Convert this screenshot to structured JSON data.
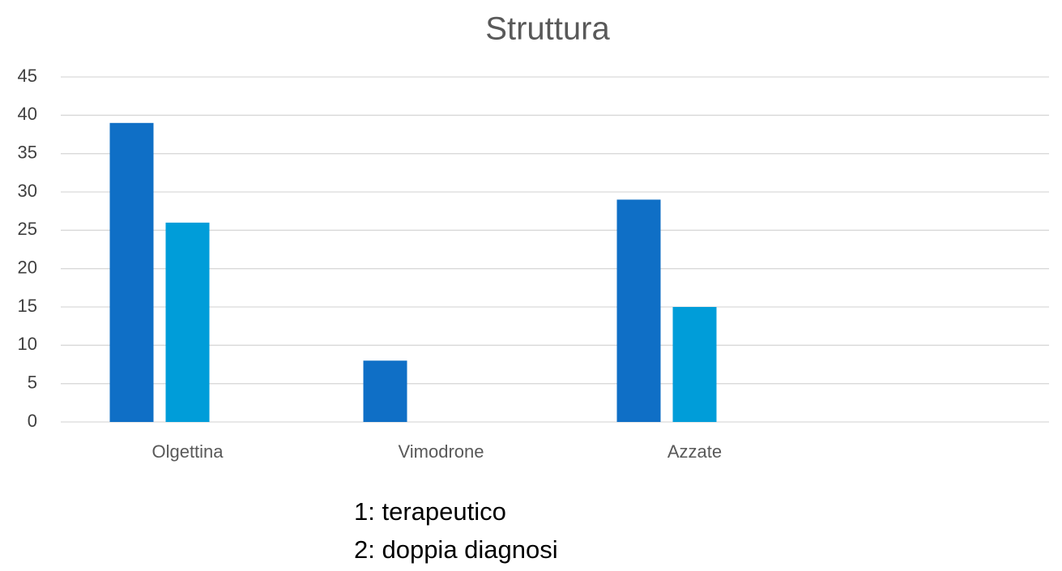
{
  "chart_data": {
    "type": "bar",
    "title": "Struttura",
    "categories": [
      "Olgettina",
      "Vimodrone",
      "Azzate"
    ],
    "series": [
      {
        "color": "#0f6fc6",
        "values": [
          39,
          8,
          29
        ]
      },
      {
        "color": "#009dd9",
        "values": [
          26,
          null,
          15
        ]
      }
    ],
    "ylim": [
      0,
      45
    ],
    "yticks": [
      0,
      5,
      10,
      15,
      20,
      25,
      30,
      35,
      40,
      45
    ],
    "grid": true,
    "annotations": [
      "1: terapeutico",
      "2: doppia diagnosi"
    ]
  }
}
